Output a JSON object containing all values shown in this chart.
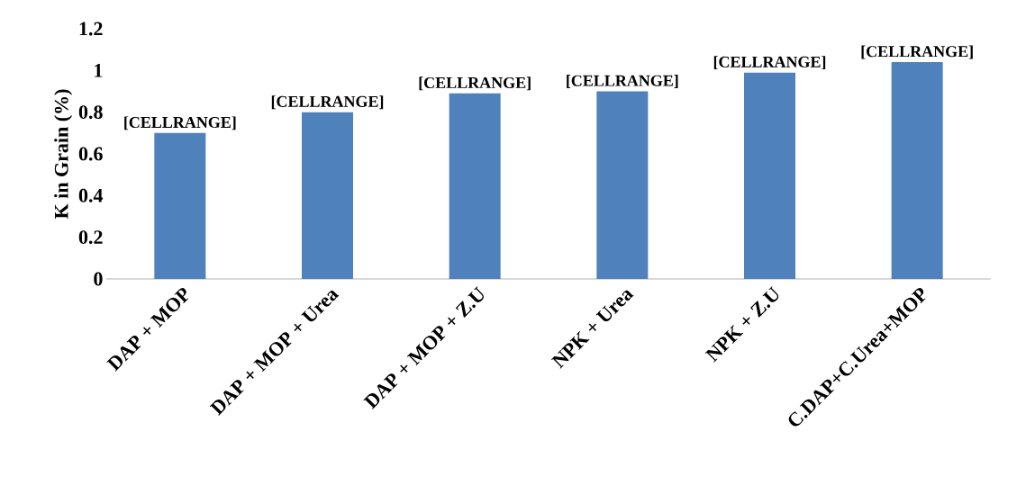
{
  "chart_data": {
    "type": "bar",
    "ylabel": "K in Grain (%)",
    "categories": [
      "DAP + MOP",
      "DAP + MOP + Urea",
      "DAP + MOP + Z.U",
      "NPK + Urea",
      "NPK + Z.U",
      "C.DAP+C.Urea+MOP"
    ],
    "values": [
      0.7,
      0.8,
      0.89,
      0.9,
      0.99,
      1.04
    ],
    "value_labels": [
      "[CELLRANGE]",
      "[CELLRANGE]",
      "[CELLRANGE]",
      "[CELLRANGE]",
      "[CELLRANGE]",
      "[CELLRANGE]"
    ],
    "color": "#4f81bd",
    "ylim": [
      0,
      1.2
    ],
    "yticks": [
      0,
      0.2,
      0.4,
      0.6,
      0.8,
      1,
      1.2
    ],
    "grid": false
  }
}
